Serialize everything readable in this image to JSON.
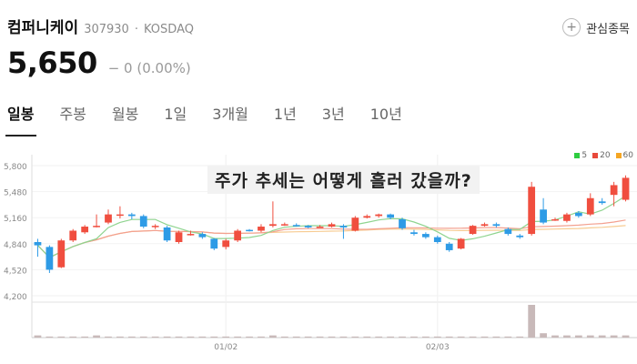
{
  "stock": {
    "name": "컴퍼니케이",
    "code": "307930",
    "market": "KOSDAQ",
    "price": "5,650",
    "change": "− 0 (0.00%)"
  },
  "watchlist_label": "관심종목",
  "tabs": [
    "일봉",
    "주봉",
    "월봉",
    "1일",
    "3개월",
    "1년",
    "3년",
    "10년"
  ],
  "overlay_title": "주가 추세는 어떻게 흘러 갔을까?",
  "legend": [
    {
      "label": "5",
      "color": "#2ecc40"
    },
    {
      "label": "20",
      "color": "#e8493b"
    },
    {
      "label": "60",
      "color": "#f5a623"
    }
  ],
  "colors": {
    "up": "#f04e3f",
    "down": "#2e9be6",
    "ma5": "#8fd48f",
    "ma20": "#f3a08f",
    "ma60": "#f7cc93"
  },
  "chart_data": {
    "type": "candlestick",
    "y_ticks": [
      5800,
      5480,
      5160,
      4840,
      4520,
      4200
    ],
    "ylim": [
      4200,
      5800
    ],
    "x_labels": [
      {
        "index": 16,
        "label": "01/02"
      },
      {
        "index": 34,
        "label": "02/03"
      }
    ],
    "candles": [
      [
        4860,
        4820,
        4900,
        4680
      ],
      [
        4800,
        4520,
        4820,
        4480
      ],
      [
        4550,
        4880,
        4900,
        4540
      ],
      [
        4880,
        5000,
        5020,
        4860
      ],
      [
        4980,
        5050,
        5070,
        4960
      ],
      [
        5060,
        5060,
        5200,
        5040
      ],
      [
        5100,
        5200,
        5260,
        5080
      ],
      [
        5200,
        5200,
        5300,
        5150
      ],
      [
        5200,
        5180,
        5220,
        5140
      ],
      [
        5180,
        5050,
        5200,
        5030
      ],
      [
        5050,
        5060,
        5080,
        5020
      ],
      [
        5040,
        4880,
        5060,
        4860
      ],
      [
        4860,
        4980,
        5000,
        4840
      ],
      [
        4960,
        4960,
        5000,
        4940
      ],
      [
        4960,
        4920,
        4980,
        4900
      ],
      [
        4900,
        4780,
        4910,
        4760
      ],
      [
        4800,
        4880,
        4900,
        4770
      ],
      [
        4880,
        5000,
        5020,
        4860
      ],
      [
        5010,
        5000,
        5020,
        4990
      ],
      [
        5000,
        5050,
        5080,
        4980
      ],
      [
        5060,
        5080,
        5360,
        5040
      ],
      [
        5080,
        5080,
        5100,
        5060
      ],
      [
        5070,
        5060,
        5090,
        5050
      ],
      [
        5060,
        5040,
        5070,
        5030
      ],
      [
        5050,
        5050,
        5070,
        5040
      ],
      [
        5050,
        5080,
        5100,
        5040
      ],
      [
        5060,
        5040,
        5080,
        4900
      ],
      [
        5000,
        5160,
        5180,
        4990
      ],
      [
        5160,
        5180,
        5200,
        5150
      ],
      [
        5180,
        5200,
        5210,
        5160
      ],
      [
        5200,
        5160,
        5210,
        5140
      ],
      [
        5140,
        5030,
        5160,
        5010
      ],
      [
        4980,
        4960,
        5010,
        4940
      ],
      [
        4960,
        4920,
        4980,
        4900
      ],
      [
        4920,
        4860,
        4940,
        4840
      ],
      [
        4840,
        4760,
        4860,
        4740
      ],
      [
        4780,
        4900,
        4910,
        4770
      ],
      [
        4960,
        5060,
        5070,
        4950
      ],
      [
        5060,
        5080,
        5100,
        5050
      ],
      [
        5080,
        5060,
        5100,
        5040
      ],
      [
        5020,
        4960,
        5040,
        4940
      ],
      [
        4940,
        4920,
        4960,
        4900
      ],
      [
        4960,
        5540,
        5600,
        4940
      ],
      [
        5260,
        5100,
        5400,
        5080
      ],
      [
        5140,
        5140,
        5160,
        5120
      ],
      [
        5120,
        5200,
        5220,
        5100
      ],
      [
        5220,
        5180,
        5240,
        5160
      ],
      [
        5200,
        5400,
        5460,
        5180
      ],
      [
        5360,
        5340,
        5400,
        5320
      ],
      [
        5440,
        5560,
        5600,
        5300
      ],
      [
        5380,
        5650,
        5680,
        5360
      ]
    ],
    "volume": [
      2,
      1,
      1,
      1,
      1,
      2,
      1,
      1,
      1,
      1,
      1,
      1,
      1,
      1,
      1,
      1,
      1,
      1,
      1,
      1,
      2,
      1,
      1,
      1,
      1,
      1,
      1,
      1,
      1,
      1,
      1,
      1,
      1,
      1,
      1,
      1,
      1,
      1,
      1,
      1,
      1,
      1,
      30,
      4,
      2,
      2,
      2,
      2,
      2,
      2,
      2
    ]
  }
}
